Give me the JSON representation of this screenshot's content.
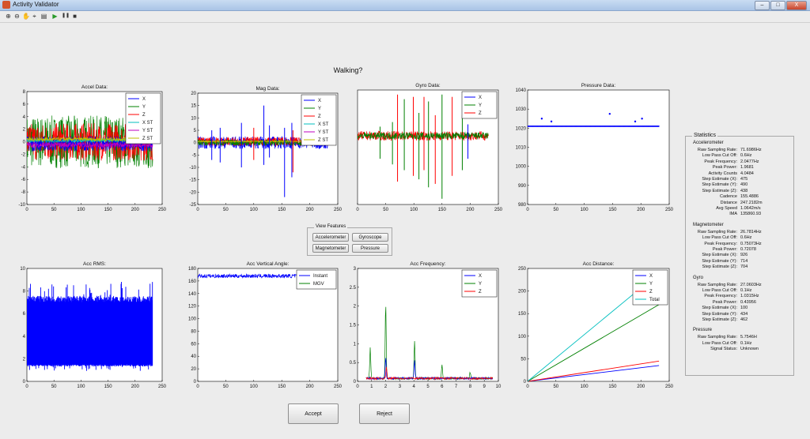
{
  "window": {
    "title": "Activity Validator",
    "buttons": [
      "–",
      "□",
      "X"
    ]
  },
  "toolbar": {
    "icons": [
      "zoom-in-icon",
      "zoom-out-icon",
      "pan-icon",
      "data-cursor-icon",
      "insert-colorbar-icon",
      "play-icon",
      "pause-icon",
      "stop-icon"
    ],
    "glyphs": [
      "⊕",
      "⊖",
      "✋",
      "⌖",
      "▤",
      "▶",
      "❚❚",
      "■"
    ]
  },
  "activity_label": "Walking?",
  "view_features": {
    "title": "View Features",
    "accelerometer": "Accelerometer",
    "gyroscope": "Gyroscope",
    "magnetometer": "Magnetometer",
    "pressure": "Pressure"
  },
  "actions": {
    "accept": "Accept",
    "reject": "Reject"
  },
  "colors": {
    "x": "#0000ff",
    "y": "#008000",
    "z": "#ff0000",
    "xst": "#00bfbf",
    "yst": "#bf00bf",
    "zst": "#bfbf00",
    "total": "#00bfbf",
    "instant": "#0000ff",
    "mgv": "#008000",
    "pressure": "#0000ff",
    "rms": "#0000ff"
  },
  "chart_data": [
    {
      "id": "accel",
      "type": "line",
      "title": "Accel Data:",
      "xlim": [
        0,
        250
      ],
      "ylim": [
        -10,
        8
      ],
      "xticks": [
        0,
        50,
        100,
        150,
        200,
        250
      ],
      "yticks": [
        -10,
        -8,
        -6,
        -4,
        -2,
        0,
        2,
        4,
        6,
        8
      ],
      "legend": [
        "X",
        "Y",
        "Z",
        "X ST",
        "Y ST",
        "Z ST"
      ],
      "legend_position": "top-right",
      "series": [
        {
          "name": "Y",
          "x_range": [
            0,
            232
          ],
          "center": 0,
          "spread": 4.2
        },
        {
          "name": "Z",
          "x_range": [
            0,
            232
          ],
          "center": 0,
          "spread": 3.0
        },
        {
          "name": "X",
          "x_range": [
            0,
            232
          ],
          "center": -0.3,
          "spread": 1.2
        },
        {
          "name": "X ST",
          "x_range": [
            0,
            232
          ],
          "center": 0.2,
          "spread": 0.3
        },
        {
          "name": "Y ST",
          "x_range": [
            0,
            232
          ],
          "center": -0.5,
          "spread": 0.4
        },
        {
          "name": "Z ST",
          "x_range": [
            0,
            232
          ],
          "center": 0.4,
          "spread": 0.3
        }
      ]
    },
    {
      "id": "mag",
      "type": "line",
      "title": "Mag Data:",
      "xlim": [
        0,
        250
      ],
      "ylim": [
        -25,
        20
      ],
      "xticks": [
        0,
        50,
        100,
        150,
        200,
        250
      ],
      "yticks": [
        -25,
        -20,
        -15,
        -10,
        -5,
        0,
        5,
        10,
        15,
        20
      ],
      "legend": [
        "X",
        "Y",
        "Z",
        "X ST",
        "Y ST",
        "Z ST"
      ],
      "legend_position": "top-right",
      "series": [
        {
          "name": "X",
          "x_range": [
            0,
            232
          ],
          "center": 0,
          "spread": 2.5
        },
        {
          "name": "Z",
          "x_range": [
            0,
            232
          ],
          "center": 0.5,
          "spread": 1.8
        },
        {
          "name": "Y",
          "x_range": [
            0,
            232
          ],
          "center": 0,
          "spread": 1.2
        },
        {
          "name": "Z ST",
          "x_range": [
            0,
            232
          ],
          "center": 0.5,
          "spread": 0.3
        }
      ],
      "spikes": [
        {
          "x": 25,
          "y": [
            -7,
            5
          ],
          "c": "x"
        },
        {
          "x": 40,
          "y": [
            -8,
            6
          ],
          "c": "x"
        },
        {
          "x": 78,
          "y": [
            -10,
            8
          ],
          "c": "x"
        },
        {
          "x": 118,
          "y": [
            -9,
            15
          ],
          "c": "x"
        },
        {
          "x": 128,
          "y": [
            -6,
            7
          ],
          "c": "x"
        },
        {
          "x": 155,
          "y": [
            -22,
            6
          ],
          "c": "x"
        },
        {
          "x": 168,
          "y": [
            -14,
            8
          ],
          "c": "x"
        },
        {
          "x": 170,
          "y": [
            -12,
            5
          ],
          "c": "z"
        },
        {
          "x": 100,
          "y": [
            -7,
            6
          ],
          "c": "z"
        }
      ]
    },
    {
      "id": "gyro",
      "type": "line",
      "title": "Gyro Data:",
      "xlim": [
        0,
        250
      ],
      "ylim": [
        -60,
        40
      ],
      "xticks": [
        0,
        50,
        100,
        150,
        200,
        250
      ],
      "yticks": [],
      "legend": [
        "X",
        "Y",
        "Z"
      ],
      "legend_position": "top-right",
      "series": [
        {
          "name": "Z",
          "x_range": [
            0,
            232
          ],
          "center": 0,
          "spread": 4
        },
        {
          "name": "Y",
          "x_range": [
            0,
            232
          ],
          "center": 0,
          "spread": 3
        }
      ],
      "spikes": [
        {
          "x": 40,
          "y": [
            -20,
            8
          ],
          "c": "y"
        },
        {
          "x": 62,
          "y": [
            -25,
            12
          ],
          "c": "y"
        },
        {
          "x": 71,
          "y": [
            -40,
            36
          ],
          "c": "z"
        },
        {
          "x": 83,
          "y": [
            -30,
            32
          ],
          "c": "y"
        },
        {
          "x": 99,
          "y": [
            -35,
            34
          ],
          "c": "z"
        },
        {
          "x": 109,
          "y": [
            -38,
            20
          ],
          "c": "y"
        },
        {
          "x": 118,
          "y": [
            -30,
            34
          ],
          "c": "z"
        },
        {
          "x": 126,
          "y": [
            -45,
            30
          ],
          "c": "y"
        },
        {
          "x": 138,
          "y": [
            -42,
            18
          ],
          "c": "z"
        },
        {
          "x": 150,
          "y": [
            -55,
            36
          ],
          "c": "y"
        },
        {
          "x": 168,
          "y": [
            -35,
            34
          ],
          "c": "z"
        },
        {
          "x": 186,
          "y": [
            -30,
            18
          ],
          "c": "y"
        },
        {
          "x": 196,
          "y": [
            -20,
            10
          ],
          "c": "x"
        }
      ]
    },
    {
      "id": "pressure",
      "type": "scatter",
      "title": "Pressure Data:",
      "xlim": [
        0,
        250
      ],
      "ylim": [
        980,
        1040
      ],
      "xticks": [
        0,
        50,
        100,
        150,
        200,
        250
      ],
      "yticks": [
        980,
        990,
        1000,
        1010,
        1020,
        1030,
        1040
      ],
      "baseline": {
        "x_range": [
          0,
          232
        ],
        "y": 1021
      },
      "points": [
        [
          25,
          1025
        ],
        [
          42,
          1023.5
        ],
        [
          145,
          1027.5
        ],
        [
          190,
          1023.5
        ],
        [
          202,
          1025
        ]
      ]
    },
    {
      "id": "rms",
      "type": "line",
      "title": "Acc RMS:",
      "xlim": [
        0,
        250
      ],
      "ylim": [
        0,
        10
      ],
      "xticks": [
        0,
        50,
        100,
        150,
        200,
        250
      ],
      "yticks": [
        0,
        2,
        4,
        6,
        8,
        10
      ],
      "fill": {
        "x_range": [
          0,
          232
        ],
        "low": 1.5,
        "high": 7.0,
        "max": 8.9,
        "min": 0.9
      }
    },
    {
      "id": "angle",
      "type": "line",
      "title": "Acc Vertical Angle:",
      "xlim": [
        0,
        250
      ],
      "ylim": [
        0,
        180
      ],
      "xticks": [
        0,
        50,
        100,
        150,
        200,
        250
      ],
      "yticks": [
        0,
        20,
        40,
        60,
        80,
        100,
        120,
        140,
        160,
        180
      ],
      "legend": [
        "Instant",
        "MGV"
      ],
      "legend_position": "top-right",
      "series": [
        {
          "name": "Instant",
          "x_range": [
            0,
            232
          ],
          "center": 168,
          "spread": 3
        }
      ]
    },
    {
      "id": "freq",
      "type": "line",
      "title": "Acc Frequency:",
      "xlim": [
        0,
        10
      ],
      "ylim": [
        0,
        3
      ],
      "xticks": [
        0,
        1,
        2,
        3,
        4,
        5,
        6,
        7,
        8,
        9,
        10
      ],
      "yticks": [
        0,
        0.5,
        1,
        1.5,
        2,
        2.5,
        3
      ],
      "legend": [
        "X",
        "Y",
        "Z"
      ],
      "legend_position": "top-right",
      "peaks": [
        {
          "x": 0.9,
          "y": 0.8,
          "c": "y"
        },
        {
          "x": 2.0,
          "y": 1.95,
          "c": "y"
        },
        {
          "x": 2.0,
          "y": 0.55,
          "c": "x"
        },
        {
          "x": 2.05,
          "y": 0.3,
          "c": "z"
        },
        {
          "x": 4.05,
          "y": 1.0,
          "c": "y"
        },
        {
          "x": 4.05,
          "y": 0.45,
          "c": "x"
        },
        {
          "x": 6.0,
          "y": 0.35,
          "c": "y"
        },
        {
          "x": 8.0,
          "y": 0.15,
          "c": "y"
        }
      ]
    },
    {
      "id": "dist",
      "type": "line",
      "title": "Acc Distance:",
      "xlim": [
        0,
        250
      ],
      "ylim": [
        0,
        250
      ],
      "xticks": [
        0,
        50,
        100,
        150,
        200,
        250
      ],
      "yticks": [
        0,
        50,
        100,
        150,
        200,
        250
      ],
      "legend": [
        "X",
        "Y",
        "Z",
        "Total"
      ],
      "legend_position": "top-right",
      "series": [
        {
          "name": "X",
          "x": [
            0,
            232
          ],
          "y": [
            0,
            35
          ]
        },
        {
          "name": "Y",
          "x": [
            0,
            232
          ],
          "y": [
            0,
            170
          ]
        },
        {
          "name": "Z",
          "x": [
            0,
            232
          ],
          "y": [
            0,
            45
          ]
        },
        {
          "name": "Total",
          "x": [
            0,
            232
          ],
          "y": [
            0,
            240
          ]
        }
      ]
    }
  ],
  "stats": {
    "title": "Statistics",
    "sections": [
      {
        "name": "Accelerometer",
        "rows": [
          [
            "Raw Sampling Rate:",
            "71.6986Hz"
          ],
          [
            "Low Pass Cut Off:",
            "0.6Hz"
          ],
          [
            "Peak Frequency:",
            "2.0477Hz"
          ],
          [
            "Peak Power:",
            "1.9681"
          ],
          [
            "Activity Counts",
            "4.0484"
          ],
          [
            "Step Estimate (X):",
            "475"
          ],
          [
            "Step Estimate (Y):",
            "490"
          ],
          [
            "Step Estimate (Z):",
            "438"
          ],
          [
            "Cadence",
            "155.4886"
          ],
          [
            "Distance",
            "247.2182m"
          ],
          [
            "Avg Speed",
            "1.0642m/s"
          ],
          [
            "IMA",
            "135860.93"
          ]
        ]
      },
      {
        "name": "Magnetometer",
        "rows": [
          [
            "Raw Sampling Rate:",
            "26.7814Hz"
          ],
          [
            "Low Pass Cut Off:",
            "0.6Hz"
          ],
          [
            "Peak Frequency:",
            "0.75073Hz"
          ],
          [
            "Peak Power:",
            "0.72078"
          ],
          [
            "Step Estimate (X):",
            "926"
          ],
          [
            "Step Estimate (Y):",
            "714"
          ],
          [
            "Step Estimate (Z):",
            "704"
          ]
        ]
      },
      {
        "name": "Gyro",
        "rows": [
          [
            "Raw Sampling Rate:",
            "27.0603Hz"
          ],
          [
            "Low Pass Cut Off:",
            "0.1Hz"
          ],
          [
            "Peak Frequency:",
            "1.0315Hz"
          ],
          [
            "Peak Power:",
            "0.43956"
          ],
          [
            "Step Estimate (X):",
            "100"
          ],
          [
            "Step Estimate (Y):",
            "434"
          ],
          [
            "Step Estimate (Z):",
            "462"
          ]
        ]
      },
      {
        "name": "Pressure",
        "rows": [
          [
            "Raw Sampling Rate:",
            "5.7546H"
          ],
          [
            "Low Pass Cut Off:",
            "0.1Hz"
          ],
          [
            "Signal Status:",
            "Unknown"
          ]
        ]
      }
    ]
  }
}
